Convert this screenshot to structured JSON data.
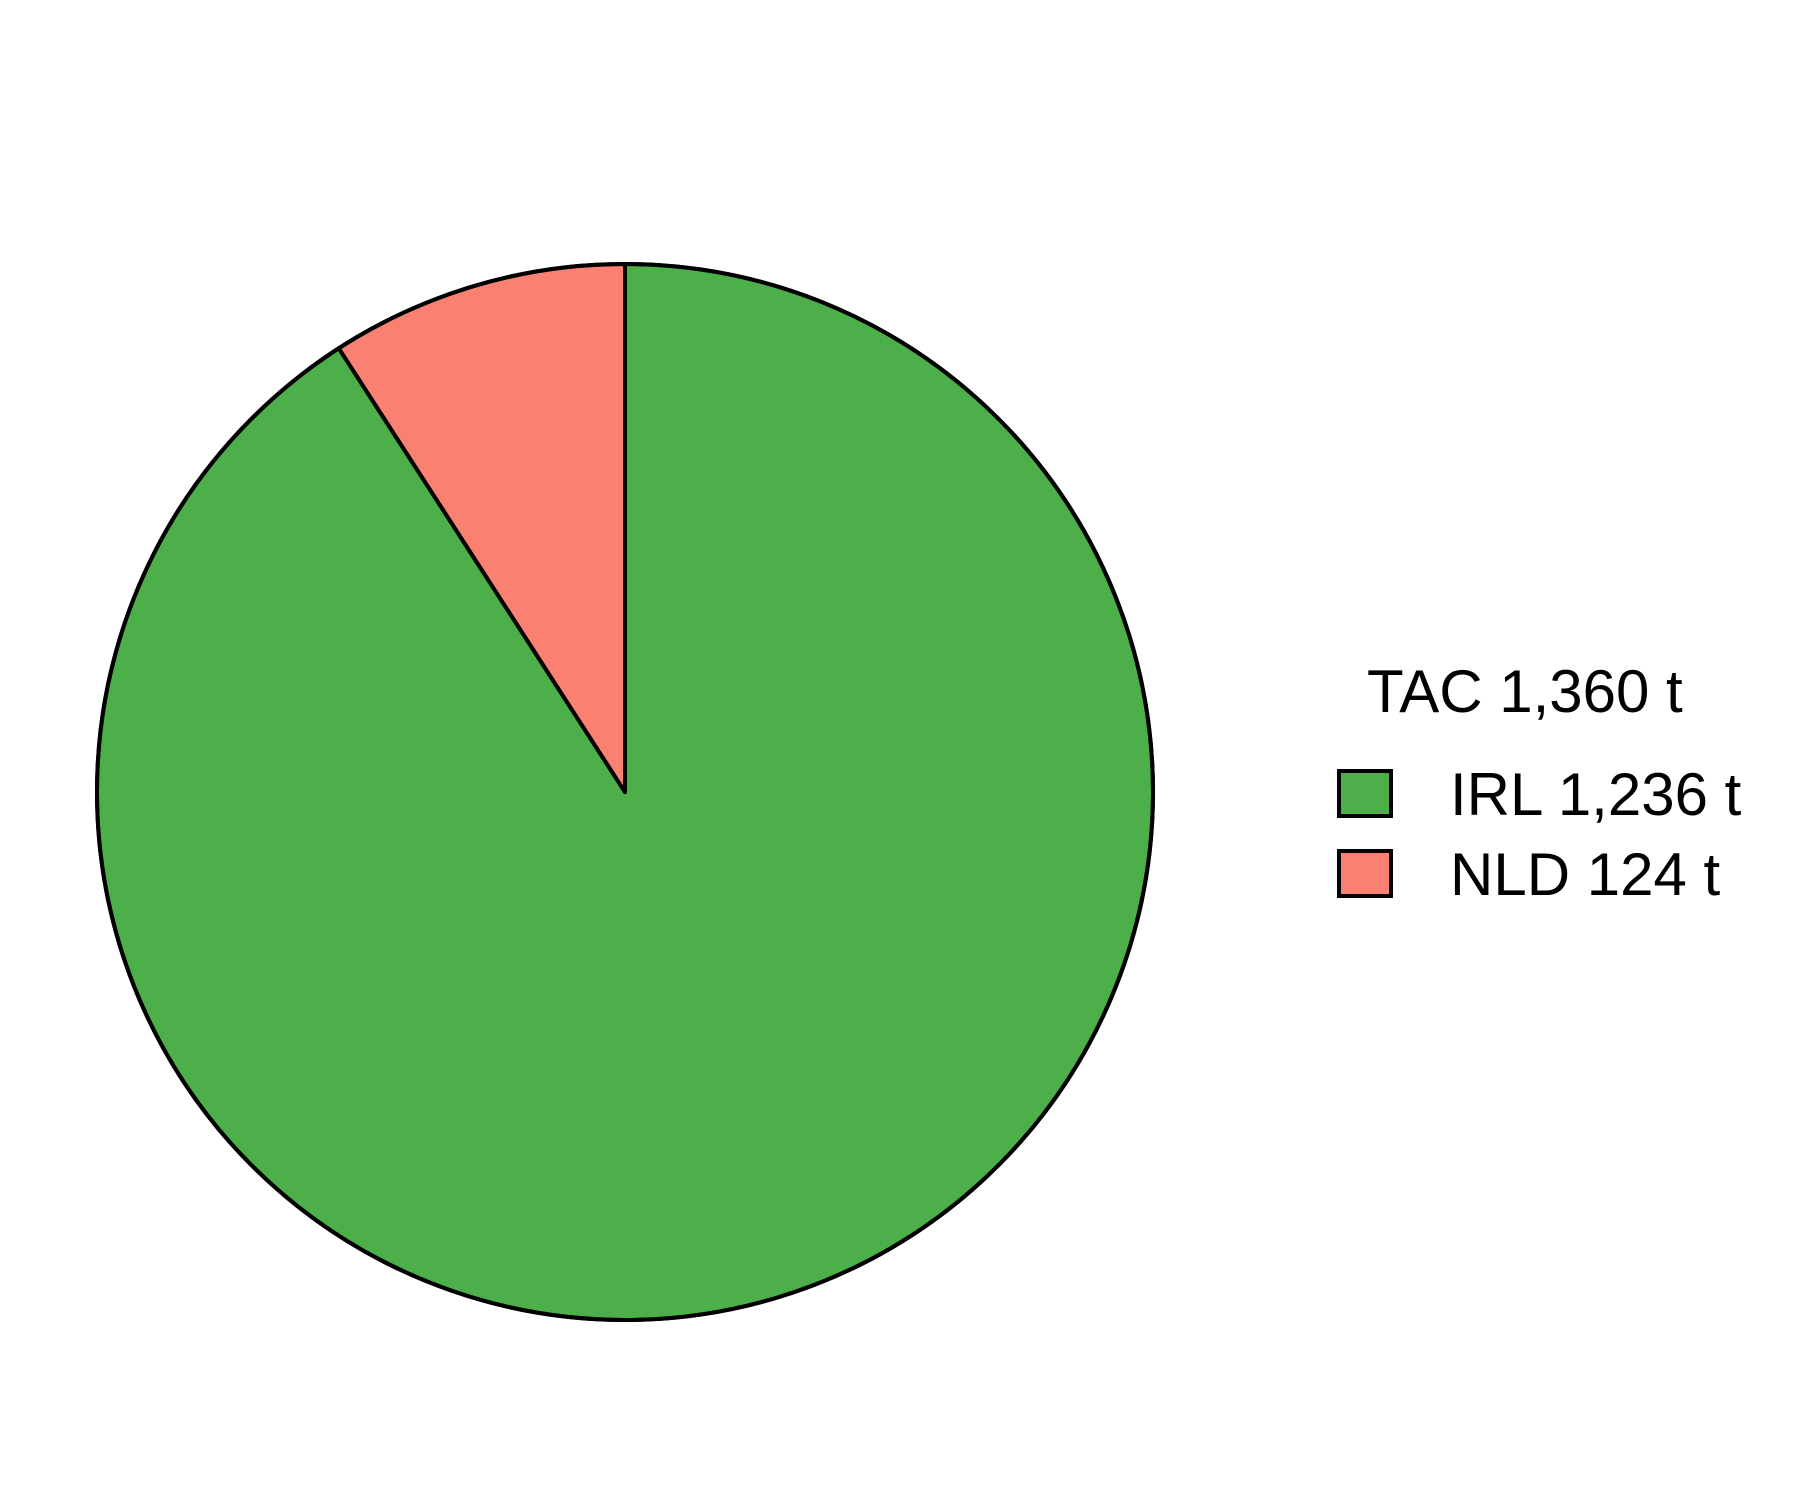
{
  "chart_data": {
    "type": "pie",
    "legend_title": "TAC 1,360 t",
    "legend_position": "right",
    "start_angle": "12 o'clock",
    "direction": "clockwise",
    "slices": [
      {
        "label": "IRL 1,236 t",
        "category": "IRL",
        "value": 1236,
        "color": "#4DAF4A"
      },
      {
        "label": "NLD 124 t",
        "category": "NLD",
        "value": 124,
        "color": "#FA8072"
      }
    ],
    "outline_color": "#000000"
  }
}
